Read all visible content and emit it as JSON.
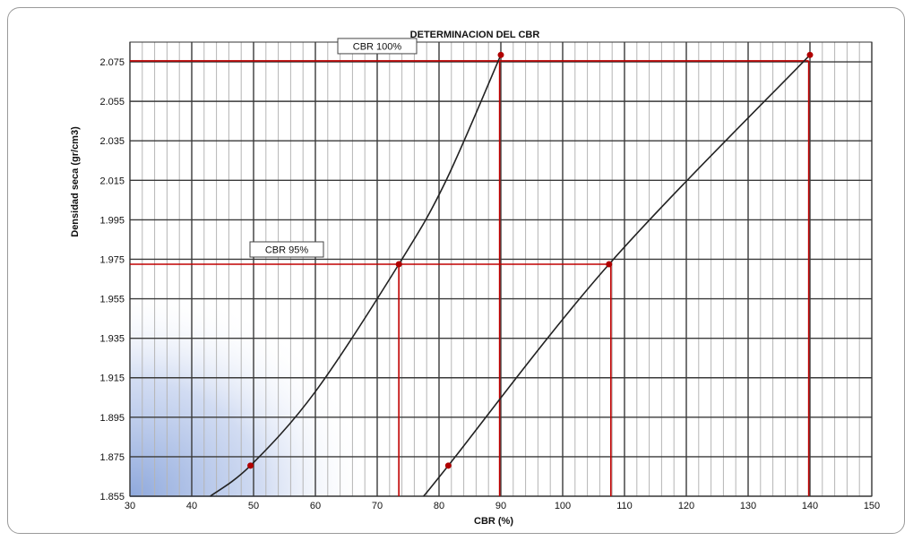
{
  "chart_data": {
    "type": "line",
    "title": "DETERMINACION DEL CBR",
    "xlabel": "CBR (%)",
    "ylabel": "Densidad seca (gr/cm3)",
    "xlim": [
      30,
      150
    ],
    "ylim": [
      1.855,
      2.085
    ],
    "x_ticks": [
      "30",
      "40",
      "50",
      "60",
      "70",
      "80",
      "90",
      "100",
      "110",
      "120",
      "130",
      "140",
      "150"
    ],
    "y_ticks": [
      "1.855",
      "1.875",
      "1.895",
      "1.915",
      "1.935",
      "1.955",
      "1.975",
      "1.995",
      "2.015",
      "2.035",
      "2.055",
      "2.075"
    ],
    "grid": true,
    "series": [
      {
        "curve": [
          [
            43,
            1.855
          ],
          [
            49.5,
            1.8705
          ],
          [
            60,
            1.908
          ],
          [
            73.5,
            1.9725
          ],
          [
            81,
            2.014
          ],
          [
            90,
            2.0785
          ]
        ],
        "points": [
          [
            49.5,
            1.8705
          ],
          [
            90,
            2.0785
          ]
        ],
        "color": "#222222"
      },
      {
        "curve": [
          [
            77.5,
            1.855
          ],
          [
            81.5,
            1.8705
          ],
          [
            107.5,
            1.9725
          ],
          [
            140,
            2.0785
          ]
        ],
        "points": [
          [
            81.5,
            1.8705
          ],
          [
            140,
            2.0785
          ]
        ],
        "color": "#222222"
      }
    ],
    "reference_lines": [
      {
        "label": "CBR 100%",
        "y": 2.0755,
        "x_values": [
          89.8,
          139.8
        ]
      },
      {
        "label": "CBR 95%",
        "y": 1.9725,
        "x_values": [
          73.5,
          107.8
        ]
      }
    ],
    "intersection_points": [
      [
        73.5,
        1.9725
      ],
      [
        107.5,
        1.9725
      ]
    ],
    "reference_color": "#c00000",
    "marker_color": "#b00000"
  }
}
